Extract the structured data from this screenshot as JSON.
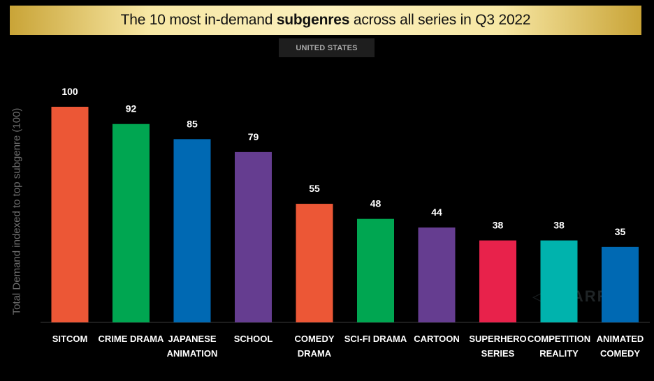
{
  "title": {
    "prefix": "The 10 most in-demand ",
    "bold": "subgenres",
    "suffix": " across all series in Q3 2022"
  },
  "region": "UNITED STATES",
  "watermark": "PARROT",
  "chart_data": {
    "type": "bar",
    "ylabel": "Total Demand indexed to top subgenre (100)",
    "ylim": [
      0,
      100
    ],
    "grid": false,
    "legend": "none",
    "categories": [
      [
        "SITCOM"
      ],
      [
        "CRIME DRAMA"
      ],
      [
        "JAPANESE",
        "ANIMATION"
      ],
      [
        "SCHOOL"
      ],
      [
        "COMEDY",
        "DRAMA"
      ],
      [
        "SCI-FI DRAMA"
      ],
      [
        "CARTOON"
      ],
      [
        "SUPERHERO",
        "SERIES"
      ],
      [
        "COMPETITION",
        "REALITY"
      ],
      [
        "ANIMATED",
        "COMEDY"
      ]
    ],
    "values": [
      100,
      92,
      85,
      79,
      55,
      48,
      44,
      38,
      38,
      35
    ],
    "colors": [
      "#ec5736",
      "#00a651",
      "#0069b3",
      "#653d90",
      "#ec5736",
      "#00a651",
      "#653d90",
      "#e8224b",
      "#00b3ad",
      "#0069b3"
    ]
  }
}
